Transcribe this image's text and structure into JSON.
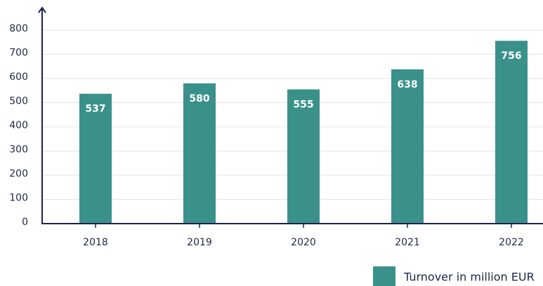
{
  "chart_data": {
    "type": "bar",
    "categories": [
      "2018",
      "2019",
      "2020",
      "2021",
      "2022"
    ],
    "values": [
      537,
      580,
      555,
      638,
      756
    ],
    "series_name": "Turnover in million EUR",
    "color": "#3a9189",
    "ylim": [
      0,
      800
    ],
    "yticks": [
      0,
      100,
      200,
      300,
      400,
      500,
      600,
      700,
      800
    ],
    "grid": true
  }
}
